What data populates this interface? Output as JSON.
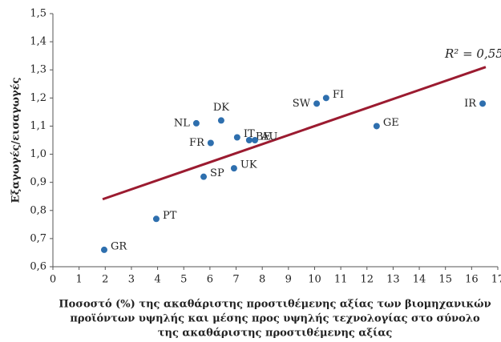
{
  "chart_data": {
    "type": "scatter",
    "y_label": "Εξαγωγές/εισαγωγές",
    "x_label": [
      "Ποσοστό (%) της ακαθάριστης προστιθέμενης αξίας των βιομηχανικών",
      "προϊόντων υψηλής και μέσης προς υψηλής τεχνολογίας στο σύνολο",
      "της ακαθάριστης προστιθέμενης αξίας"
    ],
    "annotation": "R² = 0,55",
    "color": "#2e6fae",
    "trend_color": "#9b1b30",
    "points": [
      {
        "label": "GR",
        "x": 1.96,
        "y": 0.66
      },
      {
        "label": "PT",
        "x": 3.95,
        "y": 0.77
      },
      {
        "label": "SP",
        "x": 5.76,
        "y": 0.92
      },
      {
        "label": "UK",
        "x": 6.92,
        "y": 0.95
      },
      {
        "label": "FR",
        "x": 6.03,
        "y": 1.04
      },
      {
        "label": "NL",
        "x": 5.48,
        "y": 1.11
      },
      {
        "label": "DK",
        "x": 6.43,
        "y": 1.12
      },
      {
        "label": "IT",
        "x": 7.04,
        "y": 1.06
      },
      {
        "label": "BE",
        "x": 7.5,
        "y": 1.05
      },
      {
        "label": "AU",
        "x": 7.72,
        "y": 1.05
      },
      {
        "label": "SW",
        "x": 10.08,
        "y": 1.18
      },
      {
        "label": "FI",
        "x": 10.44,
        "y": 1.2
      },
      {
        "label": "GE",
        "x": 12.37,
        "y": 1.1
      },
      {
        "label": "IR",
        "x": 16.42,
        "y": 1.18
      }
    ],
    "trend": {
      "x": [
        1.9,
        16.54
      ],
      "y": [
        0.84,
        1.31
      ]
    },
    "xlim": [
      0,
      17
    ],
    "xticks": [
      0,
      1,
      2,
      3,
      4,
      5,
      6,
      7,
      8,
      9,
      10,
      11,
      12,
      13,
      14,
      15,
      16,
      17
    ],
    "ylim": [
      0.6,
      1.5
    ],
    "yticks": [
      {
        "value": 0.6,
        "label": "0,6"
      },
      {
        "value": 0.7,
        "label": "0,7"
      },
      {
        "value": 0.8,
        "label": "0,8"
      },
      {
        "value": 0.9,
        "label": "0,9"
      },
      {
        "value": 1.0,
        "label": "1,0"
      },
      {
        "value": 1.1,
        "label": "1,1"
      },
      {
        "value": 1.2,
        "label": "1,2"
      },
      {
        "value": 1.3,
        "label": "1,3"
      },
      {
        "value": 1.4,
        "label": "1,4"
      },
      {
        "value": 1.5,
        "label": "1,5"
      }
    ]
  }
}
